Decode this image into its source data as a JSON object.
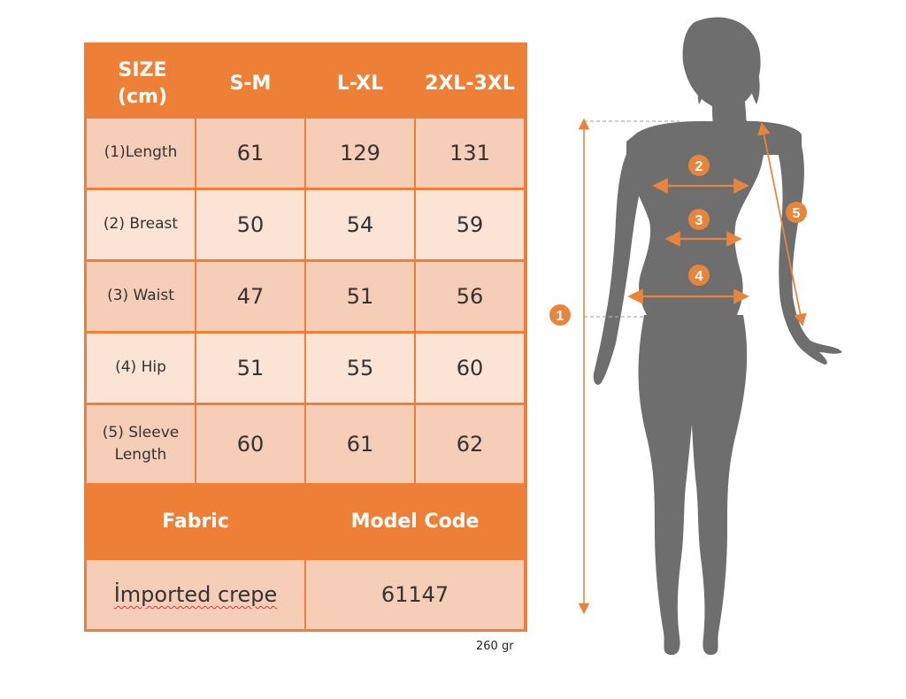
{
  "table": {
    "header": [
      "SIZE\n(cm)",
      "S-M",
      "L-XL",
      "2XL-3XL"
    ],
    "rows": [
      {
        "label": "(1)Length",
        "values": [
          "61",
          "129",
          "131"
        ]
      },
      {
        "label": "(2) Breast",
        "values": [
          "50",
          "54",
          "59"
        ]
      },
      {
        "label": "(3) Waist",
        "values": [
          "47",
          "51",
          "56"
        ]
      },
      {
        "label": "(4) Hip",
        "values": [
          "51",
          "55",
          "60"
        ]
      },
      {
        "label": "(5) Sleeve\nLength",
        "values": [
          "60",
          "61",
          "62"
        ]
      }
    ],
    "footer_headers": [
      "Fabric",
      "Model Code"
    ],
    "footer_values": [
      "İmported crepe",
      "61147"
    ]
  },
  "weight": "260 gr",
  "figure": {
    "markers": [
      "1",
      "2",
      "3",
      "4",
      "5"
    ]
  },
  "colors": {
    "orange": "#ee7f36",
    "cell_dark": "#f6cdb7",
    "cell_light": "#fbe3d6",
    "silhouette": "#6e6e6e",
    "arrow": "#e8853d"
  }
}
